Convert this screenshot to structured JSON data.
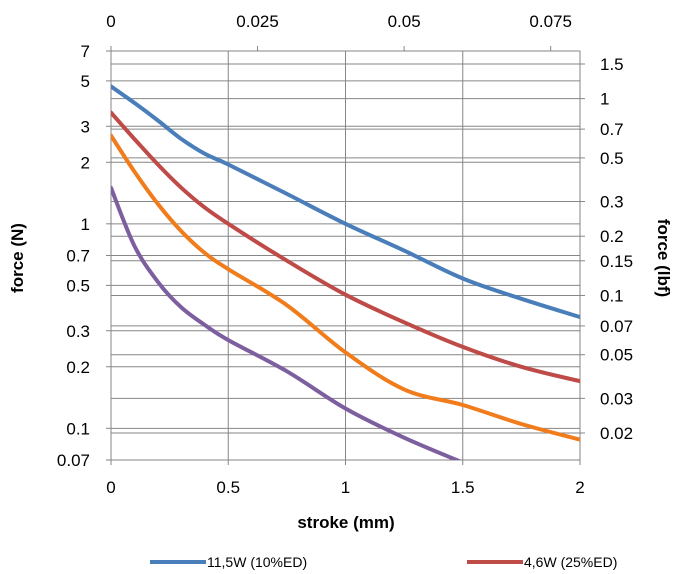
{
  "chart_data": {
    "type": "line",
    "xlabel": "stroke (mm)",
    "ylabel": "force (N)",
    "ylabel_right": "force (lbf)",
    "xlim": [
      0,
      2
    ],
    "x_ticks": [
      "0",
      "0.5",
      "1",
      "1.5",
      "2"
    ],
    "x_top_ticks": [
      "0",
      "0.025",
      "0.05",
      "0.075"
    ],
    "x_top_tick_values": [
      0,
      0.025,
      0.05,
      0.075
    ],
    "y_scale": "log",
    "ylim": [
      0.07,
      7
    ],
    "y_ticks": [
      "0.07",
      "0.1",
      "0.2",
      "0.3",
      "0.5",
      "0.7",
      "1",
      "2",
      "3",
      "5",
      "7"
    ],
    "y_tick_values": [
      0.07,
      0.1,
      0.2,
      0.3,
      0.5,
      0.7,
      1,
      2,
      3,
      5,
      7
    ],
    "y_right_ticks": [
      "0.02",
      "0.03",
      "0.05",
      "0.07",
      "0.1",
      "0.15",
      "0.2",
      "0.3",
      "0.5",
      "0.7",
      "1",
      "1.5"
    ],
    "y_right_tick_values": [
      0.02,
      0.03,
      0.05,
      0.07,
      0.1,
      0.15,
      0.2,
      0.3,
      0.5,
      0.7,
      1,
      1.5
    ],
    "grid": true,
    "legend_position": "bottom",
    "series": [
      {
        "name": "11,5W (10%ED)",
        "color": "#4a7ebb",
        "x": [
          0,
          0.1,
          0.2,
          0.3,
          0.4,
          0.5,
          0.75,
          1.0,
          1.25,
          1.5,
          1.75,
          2.0
        ],
        "y": [
          4.7,
          3.9,
          3.2,
          2.6,
          2.2,
          1.95,
          1.4,
          1.0,
          0.74,
          0.54,
          0.43,
          0.35
        ]
      },
      {
        "name": "4,6W (25%ED)",
        "color": "#be4b48",
        "x": [
          0,
          0.1,
          0.2,
          0.3,
          0.4,
          0.5,
          0.75,
          1.0,
          1.25,
          1.5,
          1.75,
          2.0
        ],
        "y": [
          3.5,
          2.6,
          1.95,
          1.5,
          1.2,
          1.0,
          0.66,
          0.45,
          0.33,
          0.25,
          0.2,
          0.17
        ]
      },
      {
        "color": "#f07c1c",
        "x": [
          0,
          0.1,
          0.2,
          0.3,
          0.4,
          0.5,
          0.75,
          1.0,
          1.25,
          1.5,
          1.75,
          2.0
        ],
        "y": [
          2.7,
          1.8,
          1.25,
          0.92,
          0.72,
          0.6,
          0.4,
          0.235,
          0.155,
          0.13,
          0.105,
          0.088
        ]
      },
      {
        "color": "#7d5fa0",
        "x": [
          0,
          0.1,
          0.2,
          0.3,
          0.4,
          0.5,
          0.75,
          1.0,
          1.25,
          1.5
        ],
        "y": [
          1.5,
          0.78,
          0.52,
          0.39,
          0.32,
          0.27,
          0.19,
          0.125,
          0.09,
          0.068
        ]
      }
    ]
  }
}
